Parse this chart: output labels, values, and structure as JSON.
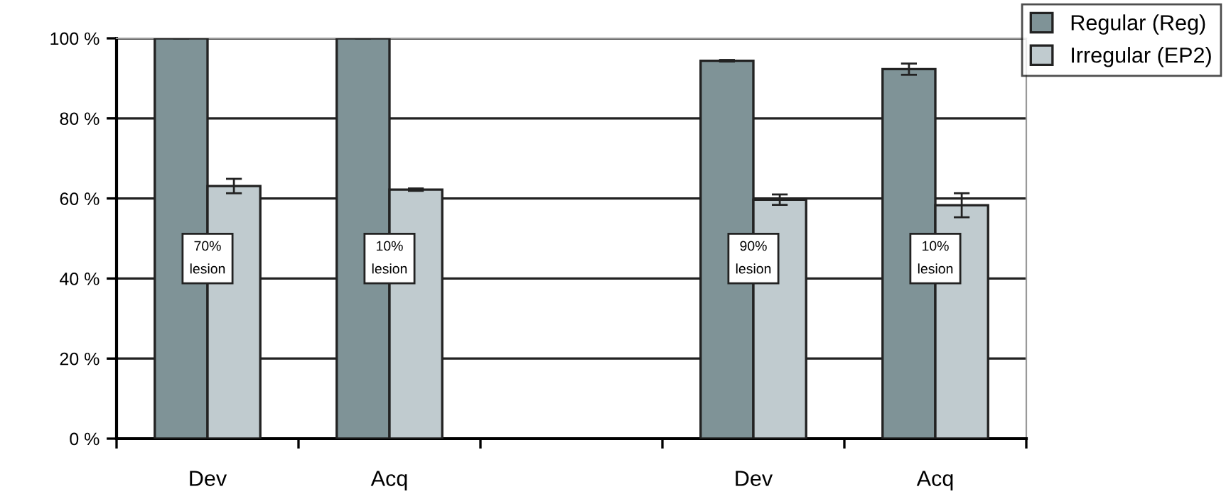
{
  "chart_data": {
    "type": "bar",
    "categories": [
      "Dev",
      "Acq",
      null,
      "Dev",
      "Acq"
    ],
    "series": [
      {
        "name": "Regular (Reg)",
        "color": "#7f9397",
        "values": [
          100,
          100,
          null,
          94.4,
          92.3
        ],
        "errors": [
          null,
          null,
          null,
          0.2,
          1.4
        ]
      },
      {
        "name": "Irregular (EP2)",
        "color": "#c0cbcf",
        "values": [
          63.1,
          62.2,
          null,
          59.7,
          58.3
        ],
        "errors": [
          1.8,
          0.3,
          null,
          1.3,
          3
        ]
      }
    ],
    "annotations": [
      "70%\nlesion",
      "10%\nlesion",
      "90%\nlesion",
      "10%\nlesion"
    ],
    "ylim": [
      0,
      100
    ],
    "yticks": [
      {
        "value": 0,
        "label": "0 %"
      },
      {
        "value": 20,
        "label": "20 %"
      },
      {
        "value": 40,
        "label": "40 %"
      },
      {
        "value": 60,
        "label": "60 %"
      },
      {
        "value": 80,
        "label": "80 %"
      },
      {
        "value": 100,
        "label": "100 %"
      }
    ],
    "grid": "y",
    "legend": "top right"
  }
}
